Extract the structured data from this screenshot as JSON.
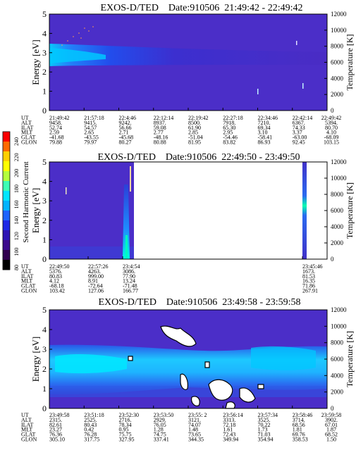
{
  "colorbar": {
    "label": "Second Harmonic Current",
    "ticks": [
      "240",
      "220",
      "200",
      "180",
      "160",
      "140",
      "120",
      "100",
      "80"
    ],
    "colors": [
      "#ff0000",
      "#ff6a00",
      "#ffd000",
      "#ffff00",
      "#b4ff3c",
      "#3cffb4",
      "#00e6ff",
      "#00b4ff",
      "#1e64ff",
      "#1e28e6",
      "#2d14b4",
      "#3c0a8c",
      "#320050",
      "#000000"
    ]
  },
  "row_labels": [
    "UT",
    "ALT",
    "ILAT",
    "MLT",
    "GLAT",
    "GLON"
  ],
  "chart_data": [
    {
      "type": "heatmap",
      "title": "EXOS-D/TED    Date:910506  21:49:42 - 22:49:42",
      "ylabel": "Energy [eV]",
      "y2label": "Temperature [K]",
      "ylim": [
        0,
        5
      ],
      "y2lim": [
        0,
        12000
      ],
      "yticks": [
        "0",
        "1",
        "2",
        "3",
        "4",
        "5"
      ],
      "y2ticks": [
        "0",
        "2000",
        "4000",
        "6000",
        "8000",
        "10000",
        "12000"
      ],
      "grid": false,
      "columns": [
        {
          "UT": "21:49:42",
          "ALT": "9458.",
          "ILAT": "52.74",
          "MLT": "2.59",
          "GLAT": "-41.68",
          "GLON": "79.88"
        },
        {
          "UT": "21:57:18",
          "ALT": "9415.",
          "ILAT": "54.57",
          "MLT": "2.65",
          "GLAT": "-43.55",
          "GLON": "79.97"
        },
        {
          "UT": "22:4:46",
          "ALT": "9242.",
          "ILAT": "56.66",
          "MLT": "2.71",
          "GLAT": "-45.68",
          "GLON": "80.27"
        },
        {
          "UT": "22:12:14",
          "ALT": "8937.",
          "ILAT": "59.08",
          "MLT": "2.77",
          "GLAT": "-48.16",
          "GLON": "80.88"
        },
        {
          "UT": "22:19:42",
          "ALT": "8500.",
          "ILAT": "61.90",
          "MLT": "2.85",
          "GLAT": "-51.04",
          "GLON": "81.95"
        },
        {
          "UT": "22:27:18",
          "ALT": "7918.",
          "ILAT": "65.30",
          "MLT": "2.95",
          "GLAT": "-54.46",
          "GLON": "83.82"
        },
        {
          "UT": "22:34:46",
          "ALT": "7210.",
          "ILAT": "69.34",
          "MLT": "3.10",
          "GLAT": "-58.41",
          "GLON": "86.93"
        },
        {
          "UT": "22:42:14",
          "ALT": "6367.",
          "ILAT": "74.33",
          "MLT": "3.37",
          "GLAT": "-63.00",
          "GLON": "92.45"
        },
        {
          "UT": "22:49:42",
          "ALT": "5394.",
          "ILAT": "80.70",
          "MLT": "4.10",
          "GLAT": "-68.09",
          "GLON": "103.15"
        }
      ]
    },
    {
      "type": "heatmap",
      "title": "EXOS-D/TED    Date:910506  22:49:50 - 23:49:50",
      "ylabel": "Energy [eV]",
      "y2label": "Temperature [K]",
      "ylim": [
        0,
        5
      ],
      "y2lim": [
        0,
        12000
      ],
      "yticks": [
        "0",
        "1",
        "2",
        "3",
        "4",
        "5"
      ],
      "y2ticks": [
        "0",
        "2000",
        "4000",
        "6000",
        "8000",
        "10000",
        "12000"
      ],
      "grid": false,
      "columns": [
        {
          "UT": "22:49:50",
          "ALT": "5376.",
          "ILAT": "80.83",
          "MLT": "4.12",
          "GLAT": "-68.18",
          "GLON": "103.42"
        },
        {
          "UT": "22:57:26",
          "ALT": "4263.",
          "ILAT": "999.00",
          "MLT": "8.91",
          "GLAT": "-72.64",
          "GLON": "127.06"
        },
        {
          "UT": "23:4:54",
          "ALT": "3086.",
          "ILAT": "77.90",
          "MLT": "13.24",
          "GLAT": "-71.48",
          "GLON": "166.77"
        },
        {
          "UT": "23:45:46",
          "ALT": "1673.",
          "ILAT": "81.53",
          "MLT": "16.35",
          "GLAT": "71.86",
          "GLON": "267.91"
        }
      ]
    },
    {
      "type": "heatmap",
      "title": "EXOS-D/TED    Date:910506  23:49:58 - 23:59:58",
      "ylabel": "Energy [eV]",
      "y2label": "Temperature [K]",
      "ylim": [
        0,
        5
      ],
      "y2lim": [
        0,
        12000
      ],
      "yticks": [
        "0",
        "1",
        "2",
        "3",
        "4",
        "5"
      ],
      "y2ticks": [
        "0",
        "2000",
        "4000",
        "6000",
        "8000",
        "10000",
        "12000"
      ],
      "grid": false,
      "columns": [
        {
          "UT": "23:49:58",
          "ALT": "2315.",
          "ILAT": "82.61",
          "MLT": "23.27",
          "GLAT": "76.36",
          "GLON": "305.10"
        },
        {
          "UT": "23:51:18",
          "ALT": "2525.",
          "ILAT": "80.43",
          "MLT": "0.42",
          "GLAT": "76.28",
          "GLON": "317.75"
        },
        {
          "UT": "23:52:30",
          "ALT": "2716.",
          "ILAT": "78.34",
          "MLT": "0.95",
          "GLAT": "75.75",
          "GLON": "327.95"
        },
        {
          "UT": "23:53:50",
          "ALT": "2929.",
          "ILAT": "76.05",
          "MLT": "1.28",
          "GLAT": "74.75",
          "GLON": "337.41"
        },
        {
          "UT": "23:55: 2",
          "ALT": "3121.",
          "ILAT": "74.07",
          "MLT": "1.48",
          "GLAT": "73.65",
          "GLON": "344.35"
        },
        {
          "UT": "23:56:14",
          "ALT": "3313.",
          "ILAT": "72.18",
          "MLT": "1.61",
          "GLAT": "72.43",
          "GLON": "349.94"
        },
        {
          "UT": "23:57:34",
          "ALT": "3525.",
          "ILAT": "70.22",
          "MLT": "1.73",
          "GLAT": "71.03",
          "GLON": "354.94"
        },
        {
          "UT": "23:58:46",
          "ALT": "3714.",
          "ILAT": "68.56",
          "MLT": "1.81",
          "GLAT": "69.76",
          "GLON": "358.53"
        },
        {
          "UT": "23:59:58",
          "ALT": "3902.",
          "ILAT": "67.01",
          "MLT": "1.87",
          "GLAT": "68.52",
          "GLON": "1.50"
        }
      ]
    }
  ]
}
